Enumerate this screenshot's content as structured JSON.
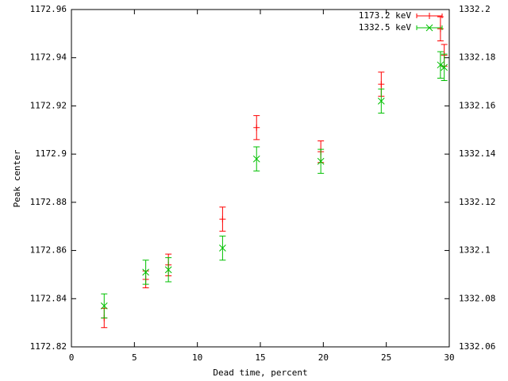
{
  "chart_data": {
    "type": "errorbar",
    "xlabel": "Dead time, percent",
    "ylabel": "Peak center",
    "x": [
      2.6,
      5.9,
      7.7,
      12,
      14.7,
      19.8,
      24.6,
      29.3,
      29.6
    ],
    "xlim": [
      0,
      30
    ],
    "xticks": [
      0,
      5,
      10,
      15,
      20,
      25,
      30
    ],
    "ylim": [
      1172.82,
      1172.96
    ],
    "yticks": [
      1172.82,
      1172.84,
      1172.86,
      1172.88,
      1172.9,
      1172.92,
      1172.94,
      1172.96
    ],
    "y2lim": [
      1332.06,
      1332.2
    ],
    "y2ticks": [
      1332.06,
      1332.08,
      1332.1,
      1332.12,
      1332.14,
      1332.16,
      1332.18,
      1332.2
    ],
    "legend": "top-right",
    "series": [
      {
        "name": "1173.2 keV",
        "color": "#ff0000",
        "marker": "plus",
        "axis": "y",
        "values": [
          1172.832,
          1172.848,
          1172.854,
          1172.873,
          1172.911,
          1172.901,
          1172.929,
          1172.952,
          1172.941
        ],
        "errors": [
          0.004,
          0.0035,
          0.0045,
          0.005,
          0.005,
          0.0045,
          0.005,
          0.005,
          0.0045
        ]
      },
      {
        "name": "1332.5 keV",
        "color": "#00c000",
        "marker": "cross",
        "axis": "y2",
        "values": [
          1332.077,
          1332.091,
          1332.092,
          1332.101,
          1332.138,
          1332.137,
          1332.162,
          1332.177,
          1332.176
        ],
        "errors": [
          0.005,
          0.005,
          0.005,
          0.005,
          0.005,
          0.005,
          0.005,
          0.0055,
          0.0055
        ]
      }
    ]
  }
}
